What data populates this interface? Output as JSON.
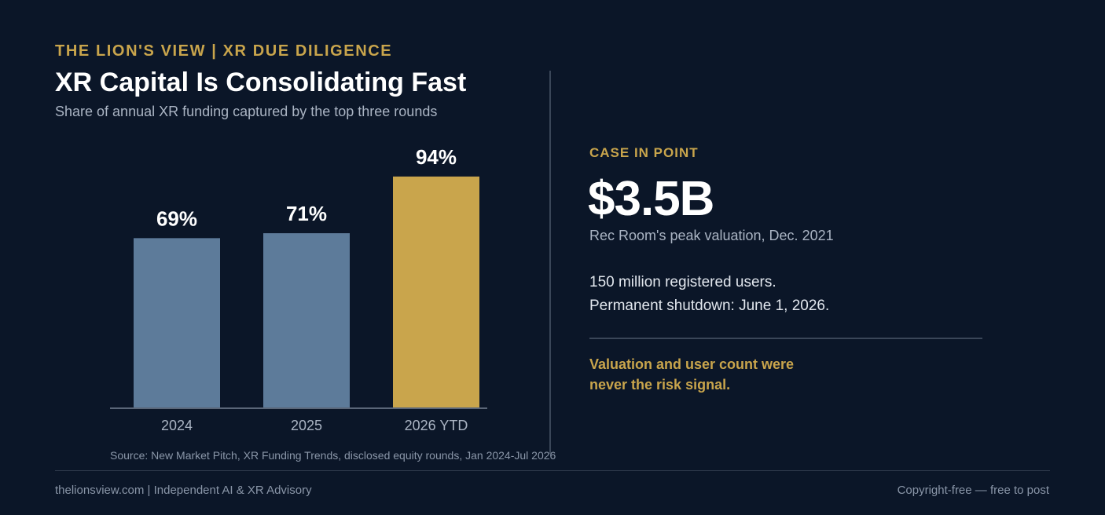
{
  "header": {
    "kicker": "THE LION'S VIEW | XR DUE DILIGENCE",
    "title": "XR Capital Is Consolidating Fast",
    "subtitle": "Share of annual XR funding captured by the top three rounds"
  },
  "chart_data": {
    "type": "bar",
    "title": "XR Capital Is Consolidating Fast",
    "subtitle": "Share of annual XR funding captured by the top three rounds",
    "categories": [
      "2024",
      "2025",
      "2026 YTD"
    ],
    "values": [
      69,
      71,
      94
    ],
    "value_labels": [
      "69%",
      "71%",
      "94%"
    ],
    "unit": "%",
    "ylim": [
      0,
      100
    ],
    "grid": false,
    "highlight_index": 2,
    "colors": {
      "default": "#5d7b9a",
      "highlight": "#c9a54c",
      "axis": "#5a6678"
    }
  },
  "source": "Source: New Market Pitch, XR Funding Trends, disclosed equity rounds, Jan 2024-Jul 2026",
  "case": {
    "kicker": "CASE IN POINT",
    "big_number": "$3.5B",
    "big_caption": "Rec Room's peak valuation, Dec. 2021",
    "fact1": "150 million registered users.",
    "fact2": "Permanent shutdown: June 1, 2026.",
    "punch1": "Valuation and user count were",
    "punch2": "never the risk signal."
  },
  "footer": {
    "left": "thelionsview.com | Independent AI & XR Advisory",
    "right": "Copyright-free — free to post"
  },
  "colors": {
    "background": "#0b1628",
    "accent": "#c9a54c",
    "text": "#ffffff"
  }
}
